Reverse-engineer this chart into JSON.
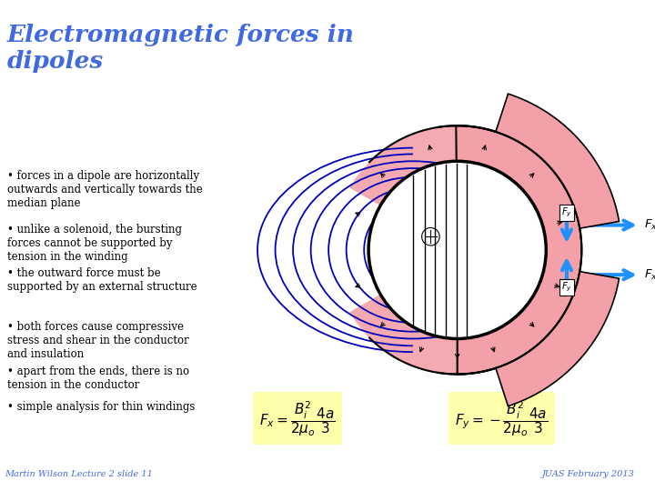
{
  "title": "Electromagnetic forces in\ndipoles",
  "title_color": "#4169E1",
  "title_fontsize": 19,
  "background_color": "#ffffff",
  "bullet_points": [
    "forces in a dipole are horizontally\noutwards and vertically towards the\nmedian plane",
    "unlike a solenoid, the bursting\nforces cannot be supported by\ntension in the winding",
    "the outward force must be\nsupported by an external structure",
    "both forces cause compressive\nstress and shear in the conductor\nand insulation",
    "apart from the ends, there is no\ntension in the conductor",
    "simple analysis for thin windings"
  ],
  "bullet_fontsize": 8.5,
  "bullet_color": "#000000",
  "formula_bg": "#ffffaa",
  "formula1": "$F_x = \\dfrac{B_i^2}{2\\mu_o} \\dfrac{4a}{3}$",
  "formula2": "$F_y = -\\dfrac{B_i^2}{2\\mu_o} \\dfrac{4a}{3}$",
  "footer_left": "Martin Wilson Lecture 2 slide 11",
  "footer_right": "JUAS February 2013",
  "footer_color": "#4169E1",
  "footer_fontsize": 7,
  "pink_color": "#F4A0A8",
  "blue_color": "#0000BB",
  "arrow_blue": "#1E90FF",
  "black": "#000000"
}
